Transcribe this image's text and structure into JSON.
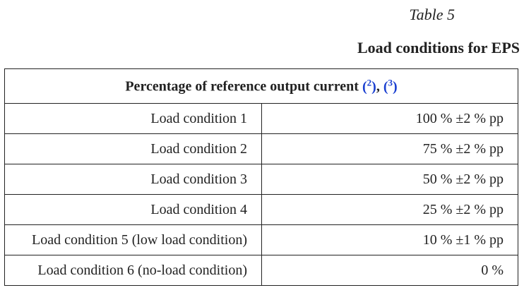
{
  "table_number": "Table 5",
  "table_title": "Load conditions for EPS",
  "header": {
    "text": "Percentage of reference output current",
    "footnotes": [
      "2",
      "3"
    ],
    "separator": ", "
  },
  "rows": [
    {
      "condition": "Load condition 1",
      "value": "100  % ±2  % pp"
    },
    {
      "condition": "Load condition 2",
      "value": "75  % ±2  % pp"
    },
    {
      "condition": "Load condition 3",
      "value": "50  % ±2  % pp"
    },
    {
      "condition": "Load condition 4",
      "value": "25  % ±2  % pp"
    },
    {
      "condition": "Load condition 5 (low load condition)",
      "value": "10  % ±1  % pp"
    },
    {
      "condition": "Load condition 6 (no-load condition)",
      "value": "0  %"
    }
  ],
  "colors": {
    "link": "#1a3fd0",
    "text": "#222222"
  }
}
